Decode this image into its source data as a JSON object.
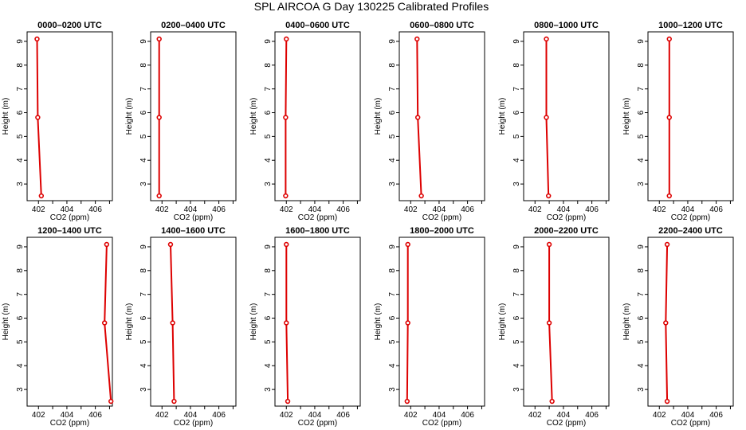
{
  "figure": {
    "title": "SPL AIRCOA G  Day 130225  Calibrated Profiles"
  },
  "colors": {
    "line": "#dd0000",
    "frame": "#000000",
    "background": "#ffffff"
  },
  "chart_data": [
    {
      "type": "line",
      "title": "0000–0200 UTC",
      "xlabel": "CO2 (ppm)",
      "ylabel": "Height (m)",
      "xlim": [
        401.2,
        407.2
      ],
      "ylim": [
        2.3,
        9.4
      ],
      "xticks": [
        "402",
        "404",
        "406"
      ],
      "yticks": [
        "3",
        "4",
        "5",
        "6",
        "7",
        "8",
        "9"
      ],
      "x": [
        402.2,
        401.95,
        401.9
      ],
      "y": [
        2.5,
        5.8,
        9.1
      ]
    },
    {
      "type": "line",
      "title": "0200–0400 UTC",
      "xlabel": "CO2 (ppm)",
      "ylabel": "Height (m)",
      "xlim": [
        401.2,
        407.2
      ],
      "ylim": [
        2.3,
        9.4
      ],
      "xticks": [
        "402",
        "404",
        "406"
      ],
      "yticks": [
        "3",
        "4",
        "5",
        "6",
        "7",
        "8",
        "9"
      ],
      "x": [
        401.8,
        401.8,
        401.8
      ],
      "y": [
        2.5,
        5.8,
        9.1
      ]
    },
    {
      "type": "line",
      "title": "0400–0600 UTC",
      "xlabel": "CO2 (ppm)",
      "ylabel": "Height (m)",
      "xlim": [
        401.2,
        407.2
      ],
      "ylim": [
        2.3,
        9.4
      ],
      "xticks": [
        "402",
        "404",
        "406"
      ],
      "yticks": [
        "3",
        "4",
        "5",
        "6",
        "7",
        "8",
        "9"
      ],
      "x": [
        401.95,
        401.95,
        402.0
      ],
      "y": [
        2.5,
        5.8,
        9.1
      ]
    },
    {
      "type": "line",
      "title": "0600–0800 UTC",
      "xlabel": "CO2 (ppm)",
      "ylabel": "Height (m)",
      "xlim": [
        401.2,
        407.2
      ],
      "ylim": [
        2.3,
        9.4
      ],
      "xticks": [
        "402",
        "404",
        "406"
      ],
      "yticks": [
        "3",
        "4",
        "5",
        "6",
        "7",
        "8",
        "9"
      ],
      "x": [
        402.75,
        402.5,
        402.45
      ],
      "y": [
        2.5,
        5.8,
        9.1
      ]
    },
    {
      "type": "line",
      "title": "0800–1000 UTC",
      "xlabel": "CO2 (ppm)",
      "ylabel": "Height (m)",
      "xlim": [
        401.2,
        407.2
      ],
      "ylim": [
        2.3,
        9.4
      ],
      "xticks": [
        "402",
        "404",
        "406"
      ],
      "yticks": [
        "3",
        "4",
        "5",
        "6",
        "7",
        "8",
        "9"
      ],
      "x": [
        402.95,
        402.8,
        402.8
      ],
      "y": [
        2.5,
        5.8,
        9.1
      ]
    },
    {
      "type": "line",
      "title": "1000–1200 UTC",
      "xlabel": "CO2 (ppm)",
      "ylabel": "Height (m)",
      "xlim": [
        401.2,
        407.2
      ],
      "ylim": [
        2.3,
        9.4
      ],
      "xticks": [
        "402",
        "404",
        "406"
      ],
      "yticks": [
        "3",
        "4",
        "5",
        "6",
        "7",
        "8",
        "9"
      ],
      "x": [
        402.7,
        402.7,
        402.7
      ],
      "y": [
        2.5,
        5.8,
        9.1
      ]
    },
    {
      "type": "line",
      "title": "1200–1400 UTC",
      "xlabel": "CO2 (ppm)",
      "ylabel": "Height (m)",
      "xlim": [
        401.2,
        407.2
      ],
      "ylim": [
        2.3,
        9.4
      ],
      "xticks": [
        "402",
        "404",
        "406"
      ],
      "yticks": [
        "3",
        "4",
        "5",
        "6",
        "7",
        "8",
        "9"
      ],
      "x": [
        407.1,
        406.65,
        406.8
      ],
      "y": [
        2.5,
        5.8,
        9.1
      ]
    },
    {
      "type": "line",
      "title": "1400–1600 UTC",
      "xlabel": "CO2 (ppm)",
      "ylabel": "Height (m)",
      "xlim": [
        401.2,
        407.2
      ],
      "ylim": [
        2.3,
        9.4
      ],
      "xticks": [
        "402",
        "404",
        "406"
      ],
      "yticks": [
        "3",
        "4",
        "5",
        "6",
        "7",
        "8",
        "9"
      ],
      "x": [
        402.85,
        402.75,
        402.6
      ],
      "y": [
        2.5,
        5.8,
        9.1
      ]
    },
    {
      "type": "line",
      "title": "1600–1800 UTC",
      "xlabel": "CO2 (ppm)",
      "ylabel": "Height (m)",
      "xlim": [
        401.2,
        407.2
      ],
      "ylim": [
        2.3,
        9.4
      ],
      "xticks": [
        "402",
        "404",
        "406"
      ],
      "yticks": [
        "3",
        "4",
        "5",
        "6",
        "7",
        "8",
        "9"
      ],
      "x": [
        402.1,
        402.0,
        402.0
      ],
      "y": [
        2.5,
        5.8,
        9.1
      ]
    },
    {
      "type": "line",
      "title": "1800–2000 UTC",
      "xlabel": "CO2 (ppm)",
      "ylabel": "Height (m)",
      "xlim": [
        401.2,
        407.2
      ],
      "ylim": [
        2.3,
        9.4
      ],
      "xticks": [
        "402",
        "404",
        "406"
      ],
      "yticks": [
        "3",
        "4",
        "5",
        "6",
        "7",
        "8",
        "9"
      ],
      "x": [
        401.75,
        401.8,
        401.8
      ],
      "y": [
        2.5,
        5.8,
        9.1
      ]
    },
    {
      "type": "line",
      "title": "2000–2200 UTC",
      "xlabel": "CO2 (ppm)",
      "ylabel": "Height (m)",
      "xlim": [
        401.2,
        407.2
      ],
      "ylim": [
        2.3,
        9.4
      ],
      "xticks": [
        "402",
        "404",
        "406"
      ],
      "yticks": [
        "3",
        "4",
        "5",
        "6",
        "7",
        "8",
        "9"
      ],
      "x": [
        403.2,
        403.0,
        403.0
      ],
      "y": [
        2.5,
        5.8,
        9.1
      ]
    },
    {
      "type": "line",
      "title": "2200–2400 UTC",
      "xlabel": "CO2 (ppm)",
      "ylabel": "Height (m)",
      "xlim": [
        401.2,
        407.2
      ],
      "ylim": [
        2.3,
        9.4
      ],
      "xticks": [
        "402",
        "404",
        "406"
      ],
      "yticks": [
        "3",
        "4",
        "5",
        "6",
        "7",
        "8",
        "9"
      ],
      "x": [
        402.55,
        402.45,
        402.55
      ],
      "y": [
        2.5,
        5.8,
        9.1
      ]
    }
  ]
}
